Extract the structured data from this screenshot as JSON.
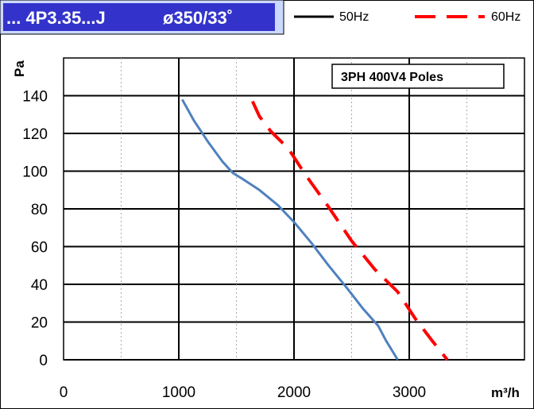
{
  "chart_data": {
    "type": "line",
    "header": {
      "model": "... 4P3.35...J",
      "diameter": "ø350/33˚",
      "model_bg": "#3333cc",
      "box_bg": "#ccd9ff"
    },
    "annotation": "3PH 400V4 Poles",
    "xlabel": "m³/h",
    "ylabel": "Pa",
    "xlim": [
      0,
      4000
    ],
    "ylim": [
      0,
      160
    ],
    "x_ticks": [
      0,
      1000,
      2000,
      3000
    ],
    "x_tick_labels": [
      "0",
      "1000",
      "2000",
      "3000"
    ],
    "y_ticks": [
      0,
      20,
      40,
      60,
      80,
      100,
      120,
      140
    ],
    "y_tick_labels": [
      "0",
      "20",
      "40",
      "60",
      "80",
      "100",
      "120",
      "140"
    ],
    "x_major_grid": [
      1000,
      2000,
      3000
    ],
    "x_minor_grid": [
      500,
      1500,
      2500,
      3500
    ],
    "grid": true,
    "legend_position": "top",
    "series": [
      {
        "name": "50Hz",
        "color": "#000000",
        "line_color": "#4f81bd",
        "style": "solid",
        "points": [
          [
            1030,
            138
          ],
          [
            1130,
            127
          ],
          [
            1260,
            115
          ],
          [
            1380,
            105
          ],
          [
            1470,
            99
          ],
          [
            1550,
            96
          ],
          [
            1700,
            90
          ],
          [
            1860,
            82
          ],
          [
            2000,
            73
          ],
          [
            2150,
            62
          ],
          [
            2300,
            50
          ],
          [
            2460,
            38
          ],
          [
            2600,
            27
          ],
          [
            2730,
            18
          ],
          [
            2800,
            10
          ],
          [
            2900,
            0
          ]
        ]
      },
      {
        "name": "60Hz",
        "color": "#ff0000",
        "line_color": "#ff0000",
        "style": "dashed",
        "points": [
          [
            1640,
            137
          ],
          [
            1700,
            129
          ],
          [
            1800,
            121
          ],
          [
            1950,
            112
          ],
          [
            2100,
            98
          ],
          [
            2300,
            81
          ],
          [
            2500,
            63
          ],
          [
            2700,
            48
          ],
          [
            2900,
            36
          ],
          [
            3050,
            22
          ],
          [
            3200,
            10
          ],
          [
            3330,
            0
          ]
        ]
      }
    ]
  }
}
